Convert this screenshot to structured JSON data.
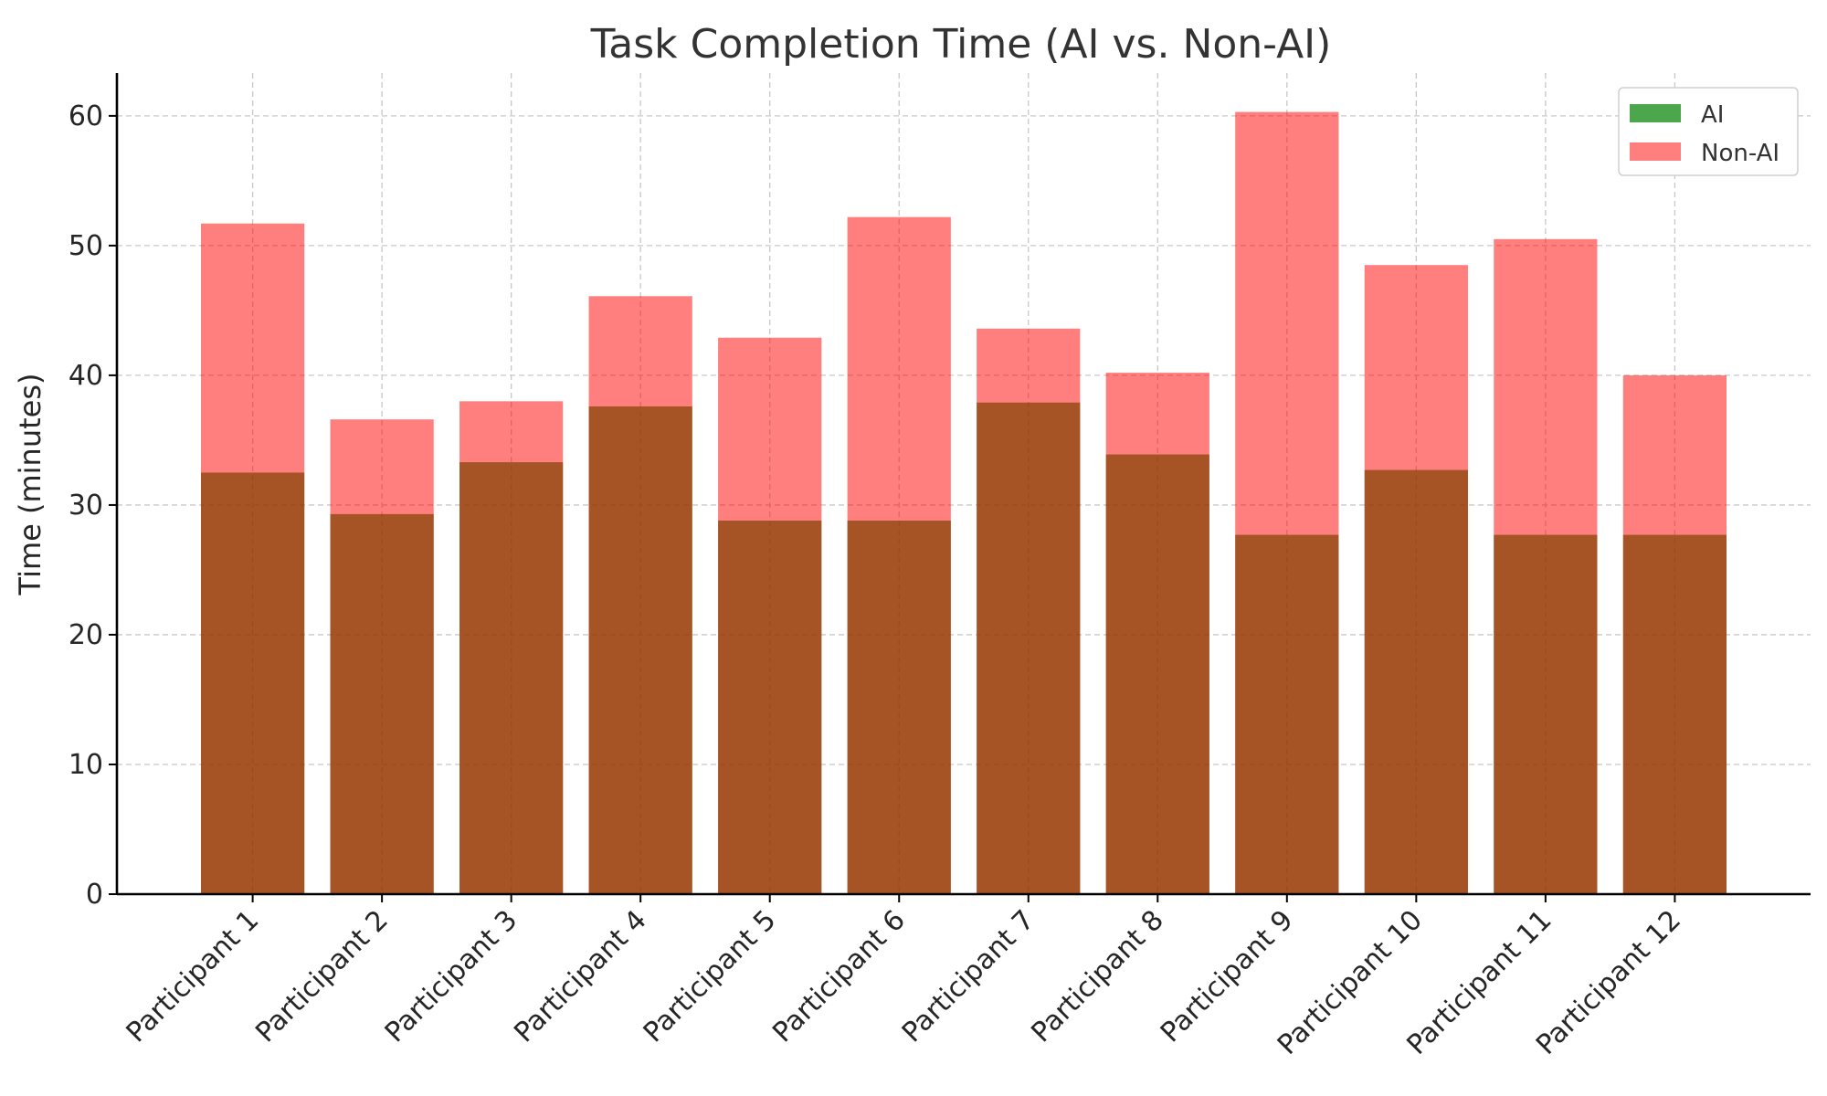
{
  "chart_data": {
    "type": "bar",
    "title": "Task Completion Time (AI vs. Non-AI)",
    "xlabel": "",
    "ylabel": "Time (minutes)",
    "ylim": [
      0,
      63.3
    ],
    "yticks": [
      0,
      10,
      20,
      30,
      40,
      50,
      60
    ],
    "grid": true,
    "legend_position": "top-right",
    "categories": [
      "Participant 1",
      "Participant 2",
      "Participant 3",
      "Participant 4",
      "Participant 5",
      "Participant 6",
      "Participant 7",
      "Participant 8",
      "Participant 9",
      "Participant 10",
      "Participant 11",
      "Participant 12"
    ],
    "series": [
      {
        "name": "AI",
        "color": "#008000",
        "opacity": 0.7,
        "values": [
          32.5,
          29.3,
          33.3,
          37.6,
          28.8,
          28.8,
          37.9,
          33.9,
          27.7,
          32.7,
          27.7,
          27.7
        ]
      },
      {
        "name": "Non-AI",
        "color": "#ff0000",
        "opacity": 0.5,
        "values": [
          51.7,
          36.6,
          38.0,
          46.1,
          42.9,
          52.2,
          43.6,
          40.2,
          60.3,
          48.5,
          50.5,
          40.0
        ]
      }
    ]
  }
}
